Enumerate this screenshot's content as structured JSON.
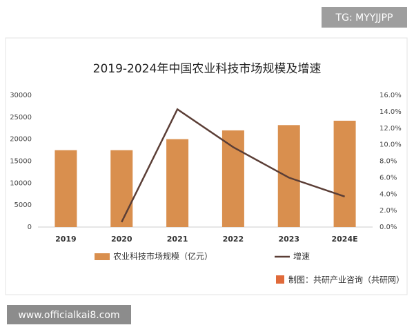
{
  "chart_data": {
    "type": "bar",
    "title": "2019-2024年中国农业科技市场规模及增速",
    "categories": [
      "2019",
      "2020",
      "2021",
      "2022",
      "2023",
      "2024E"
    ],
    "series": [
      {
        "name": "农业科技市场规模（亿元）",
        "type": "bar",
        "color": "#d98f4e",
        "values": [
          17500,
          17500,
          20000,
          22000,
          23200,
          24200
        ]
      },
      {
        "name": "增速",
        "type": "line",
        "axis": "y2",
        "color": "#5b3e36",
        "values": [
          null,
          0.6,
          14.3,
          9.7,
          6.0,
          3.7
        ]
      }
    ],
    "ylim": [
      0,
      30000
    ],
    "yticks": [
      0,
      5000,
      10000,
      15000,
      20000,
      25000,
      30000
    ],
    "y2lim": [
      0,
      16
    ],
    "y2ticks": [
      {
        "value": 0,
        "label": "0.0%"
      },
      {
        "value": 2,
        "label": "2.0%"
      },
      {
        "value": 4,
        "label": "4.0%"
      },
      {
        "value": 6,
        "label": "6.0%"
      },
      {
        "value": 8,
        "label": "8.0%"
      },
      {
        "value": 10,
        "label": "10.0%"
      },
      {
        "value": 12,
        "label": "12.0%"
      },
      {
        "value": 14,
        "label": "14.0%"
      },
      {
        "value": 16,
        "label": "16.0%"
      }
    ],
    "grid": false,
    "legend": "bottom",
    "source": "制图：共研产业咨询（共研网）"
  },
  "watermarks": [
    "TG: MYYJJPP",
    "www.officialkai8.com"
  ]
}
